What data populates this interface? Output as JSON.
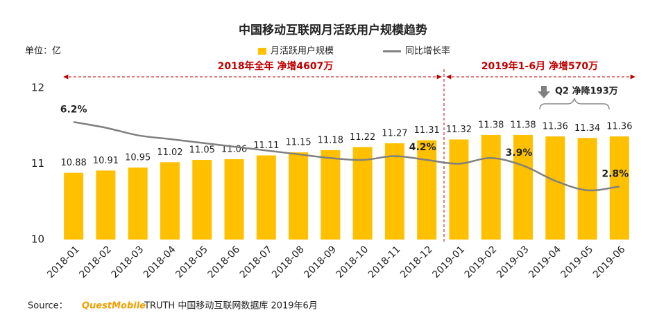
{
  "chart_data": {
    "type": "bar-line",
    "title": "中国移动互联网月活跃用户规模趋势",
    "unit_label": "单位：亿",
    "categories": [
      "2018-01",
      "2018-02",
      "2018-03",
      "2018-04",
      "2018-05",
      "2018-06",
      "2018-07",
      "2018-08",
      "2018-09",
      "2018-10",
      "2018-11",
      "2018-12",
      "2019-01",
      "2019-02",
      "2019-03",
      "2019-04",
      "2019-05",
      "2019-06"
    ],
    "series": [
      {
        "name": "月活跃用户规模",
        "type": "bar",
        "color": "#ffc000",
        "values": [
          10.88,
          10.91,
          10.95,
          11.02,
          11.05,
          11.06,
          11.11,
          11.15,
          11.18,
          11.22,
          11.27,
          11.31,
          11.32,
          11.38,
          11.38,
          11.36,
          11.34,
          11.36
        ]
      },
      {
        "name": "同比增长率",
        "type": "line",
        "axis": "y2",
        "color": "#7f7f7f",
        "values": [
          6.2,
          5.9,
          5.5,
          5.3,
          5.1,
          4.9,
          4.7,
          4.5,
          4.3,
          4.2,
          4.4,
          4.2,
          4.0,
          4.3,
          3.9,
          3.1,
          2.6,
          2.8
        ],
        "value_labels": [
          "6.2%",
          null,
          null,
          null,
          null,
          null,
          null,
          null,
          null,
          null,
          null,
          "4.2%",
          null,
          null,
          "3.9%",
          null,
          null,
          "2.8%"
        ]
      }
    ],
    "ylim": [
      10,
      12
    ],
    "yticks": [
      10,
      11,
      12
    ],
    "y2lim": [
      0,
      8
    ],
    "grid": false,
    "annotations": [
      "2018年全年 净增4607万",
      "2019年1-6月 净增570万",
      "Q2 净降193万"
    ],
    "source": {
      "prefix": "Source：",
      "brand": "QuestMobile",
      "text": "TRUTH 中国移动互联网数据库 2019年6月"
    }
  }
}
